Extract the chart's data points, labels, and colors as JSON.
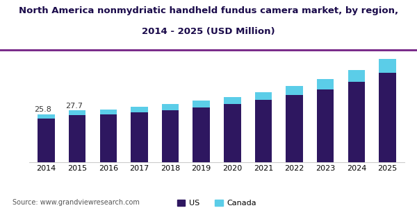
{
  "years": [
    2014,
    2015,
    2016,
    2017,
    2018,
    2019,
    2020,
    2021,
    2022,
    2023,
    2024,
    2025
  ],
  "us_values": [
    23.5,
    25.2,
    25.8,
    26.8,
    28.0,
    29.5,
    31.2,
    33.5,
    36.0,
    39.0,
    43.0,
    48.0
  ],
  "canada_values": [
    2.3,
    2.5,
    2.6,
    2.9,
    3.2,
    3.5,
    3.8,
    4.2,
    4.8,
    5.5,
    6.5,
    7.5
  ],
  "annotations": [
    {
      "year_idx": 0,
      "text": "25.8"
    },
    {
      "year_idx": 1,
      "text": "27.7"
    }
  ],
  "us_color": "#2e1760",
  "canada_color": "#5bcde8",
  "title_line1": "North America nonmydriatic handheld fundus camera market, by region,",
  "title_line2": "2014 - 2025 (USD Million)",
  "title_fontsize": 9.5,
  "legend_labels": [
    "US",
    "Canada"
  ],
  "source_text": "Source: www.grandviewresearch.com",
  "ylim": [
    0,
    58
  ],
  "bar_width": 0.55,
  "title_color": "#1a0a4a",
  "background_color": "#ffffff",
  "annotation_fontsize": 8,
  "xtick_fontsize": 8,
  "legend_fontsize": 8,
  "source_fontsize": 7
}
